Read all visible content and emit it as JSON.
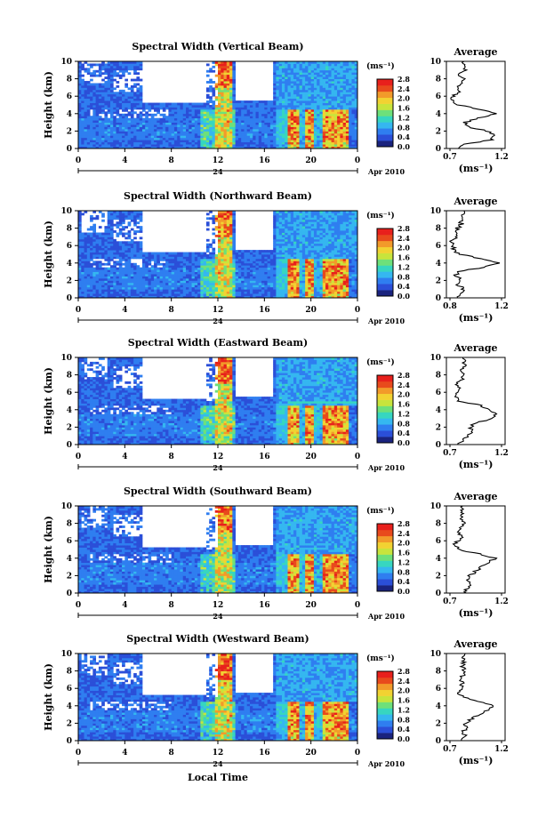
{
  "figure": {
    "x_label": "Local Time",
    "date_label": "Apr 2010",
    "date_day": "24",
    "colorbar_unit": "(ms⁻¹)",
    "colorbar_ticks": [
      "0.0",
      "0.4",
      "0.8",
      "1.2",
      "1.6",
      "2.0",
      "2.4",
      "2.8"
    ],
    "colorscale": [
      "#1a237e",
      "#2b4fd8",
      "#2f7ef0",
      "#35b7f0",
      "#37d6c0",
      "#6ee07a",
      "#c8e43c",
      "#f2d232",
      "#f29a2a",
      "#e84a1c",
      "#e8201c"
    ],
    "avg_title": "Average",
    "avg_unit": "(ms⁻¹)"
  },
  "chart_data": [
    {
      "type": "heatmap",
      "title": "Spectral Width (Vertical Beam)",
      "ylabel": "Height (km)",
      "xlabel": "Local Time",
      "x_ticks": [
        "0",
        "4",
        "8",
        "12",
        "16",
        "20",
        "0"
      ],
      "y_ticks": [
        "0",
        "2",
        "4",
        "6",
        "8",
        "10"
      ],
      "xlim": [
        0,
        24
      ],
      "ylim": [
        0,
        10
      ],
      "colorbar": {
        "label": "(ms⁻¹)",
        "range": [
          0.0,
          2.8
        ]
      },
      "profile": {
        "title": "Average",
        "xlabel": "(ms⁻¹)",
        "x_ticks": [
          "0.7",
          "1.2"
        ],
        "xlim": [
          0.7,
          1.2
        ],
        "points": [
          [
            0.0,
            0.78
          ],
          [
            0.5,
            0.86
          ],
          [
            1.0,
            1.08
          ],
          [
            1.5,
            1.1
          ],
          [
            2.0,
            1.05
          ],
          [
            2.5,
            0.88
          ],
          [
            3.0,
            0.86
          ],
          [
            3.5,
            0.98
          ],
          [
            4.0,
            1.12
          ],
          [
            4.5,
            0.98
          ],
          [
            5.0,
            0.8
          ],
          [
            5.5,
            0.75
          ],
          [
            6.0,
            0.76
          ],
          [
            6.5,
            0.8
          ],
          [
            7.0,
            0.78
          ],
          [
            7.5,
            0.83
          ],
          [
            8.0,
            0.85
          ],
          [
            8.5,
            0.8
          ],
          [
            9.0,
            0.86
          ],
          [
            9.5,
            0.84
          ],
          [
            10.0,
            0.85
          ]
        ]
      }
    },
    {
      "type": "heatmap",
      "title": "Spectral Width (Northward Beam)",
      "ylabel": "Height (km)",
      "xlabel": "Local Time",
      "x_ticks": [
        "0",
        "4",
        "8",
        "12",
        "16",
        "20",
        "0"
      ],
      "y_ticks": [
        "0",
        "2",
        "4",
        "6",
        "8",
        "10"
      ],
      "xlim": [
        0,
        24
      ],
      "ylim": [
        0,
        10
      ],
      "colorbar": {
        "label": "(ms⁻¹)",
        "range": [
          0.0,
          2.8
        ]
      },
      "profile": {
        "title": "Average",
        "xlabel": "(ms⁻¹)",
        "x_ticks": [
          "0.8",
          "1.2"
        ],
        "xlim": [
          0.8,
          1.2
        ],
        "points": [
          [
            0.0,
            0.86
          ],
          [
            0.5,
            0.9
          ],
          [
            1.0,
            0.92
          ],
          [
            1.5,
            0.88
          ],
          [
            2.0,
            0.9
          ],
          [
            2.5,
            0.86
          ],
          [
            3.0,
            0.88
          ],
          [
            3.5,
            1.05
          ],
          [
            4.0,
            1.16
          ],
          [
            4.5,
            1.02
          ],
          [
            5.0,
            0.9
          ],
          [
            5.5,
            0.85
          ],
          [
            6.0,
            0.84
          ],
          [
            6.5,
            0.83
          ],
          [
            7.0,
            0.86
          ],
          [
            7.5,
            0.87
          ],
          [
            8.0,
            0.88
          ],
          [
            8.5,
            0.9
          ],
          [
            9.0,
            0.91
          ],
          [
            9.5,
            0.9
          ],
          [
            10.0,
            0.92
          ]
        ]
      }
    },
    {
      "type": "heatmap",
      "title": "Spectral Width (Eastward Beam)",
      "ylabel": "Height (km)",
      "xlabel": "Local Time",
      "x_ticks": [
        "0",
        "4",
        "8",
        "12",
        "16",
        "20",
        "0"
      ],
      "y_ticks": [
        "0",
        "2",
        "4",
        "6",
        "8",
        "10"
      ],
      "xlim": [
        0,
        24
      ],
      "ylim": [
        0,
        10
      ],
      "colorbar": {
        "label": "(ms⁻¹)",
        "range": [
          0.0,
          2.8
        ]
      },
      "profile": {
        "title": "Average",
        "xlabel": "(ms⁻¹)",
        "x_ticks": [
          "0.7",
          "1.2"
        ],
        "xlim": [
          0.7,
          1.2
        ],
        "points": [
          [
            0.0,
            0.8
          ],
          [
            0.5,
            0.84
          ],
          [
            1.0,
            0.88
          ],
          [
            1.5,
            0.92
          ],
          [
            2.0,
            0.9
          ],
          [
            2.5,
            0.95
          ],
          [
            3.0,
            1.1
          ],
          [
            3.5,
            1.12
          ],
          [
            4.0,
            1.05
          ],
          [
            4.5,
            1.0
          ],
          [
            5.0,
            0.8
          ],
          [
            5.5,
            0.78
          ],
          [
            6.0,
            0.8
          ],
          [
            6.5,
            0.82
          ],
          [
            7.0,
            0.79
          ],
          [
            7.5,
            0.83
          ],
          [
            8.0,
            0.85
          ],
          [
            8.5,
            0.82
          ],
          [
            9.0,
            0.86
          ],
          [
            9.5,
            0.85
          ],
          [
            10.0,
            0.84
          ]
        ]
      }
    },
    {
      "type": "heatmap",
      "title": "Spectral Width (Southward Beam)",
      "ylabel": "Height (km)",
      "xlabel": "Local Time",
      "x_ticks": [
        "0",
        "4",
        "8",
        "12",
        "16",
        "20",
        "0"
      ],
      "y_ticks": [
        "0",
        "2",
        "4",
        "6",
        "8",
        "10"
      ],
      "xlim": [
        0,
        24
      ],
      "ylim": [
        0,
        10
      ],
      "colorbar": {
        "label": "(ms⁻¹)",
        "range": [
          0.0,
          2.8
        ]
      },
      "profile": {
        "title": "Average",
        "xlabel": "(ms⁻¹)",
        "x_ticks": [
          "0.7",
          "1.2"
        ],
        "xlim": [
          0.7,
          1.2
        ],
        "points": [
          [
            0.0,
            0.85
          ],
          [
            0.5,
            0.88
          ],
          [
            1.0,
            0.9
          ],
          [
            1.5,
            0.87
          ],
          [
            2.0,
            0.9
          ],
          [
            2.5,
            0.95
          ],
          [
            3.0,
            1.0
          ],
          [
            3.5,
            1.05
          ],
          [
            4.0,
            1.12
          ],
          [
            4.5,
            0.98
          ],
          [
            5.0,
            0.8
          ],
          [
            5.5,
            0.77
          ],
          [
            6.0,
            0.8
          ],
          [
            6.5,
            0.83
          ],
          [
            7.0,
            0.8
          ],
          [
            7.5,
            0.82
          ],
          [
            8.0,
            0.86
          ],
          [
            8.5,
            0.82
          ],
          [
            9.0,
            0.84
          ],
          [
            9.5,
            0.83
          ],
          [
            10.0,
            0.84
          ]
        ]
      }
    },
    {
      "type": "heatmap",
      "title": "Spectral Width (Westward Beam)",
      "ylabel": "Height (km)",
      "xlabel": "Local Time",
      "x_ticks": [
        "0",
        "4",
        "8",
        "12",
        "16",
        "20",
        "0"
      ],
      "y_ticks": [
        "0",
        "2",
        "4",
        "6",
        "8",
        "10"
      ],
      "xlim": [
        0,
        24
      ],
      "ylim": [
        0,
        10
      ],
      "colorbar": {
        "label": "(ms⁻¹)",
        "range": [
          0.0,
          2.8
        ]
      },
      "profile": {
        "title": "Average",
        "xlabel": "(ms⁻¹)",
        "x_ticks": [
          "0.7",
          "1.2"
        ],
        "xlim": [
          0.7,
          1.2
        ],
        "points": [
          [
            0.0,
            0.82
          ],
          [
            0.5,
            0.86
          ],
          [
            1.0,
            0.84
          ],
          [
            1.5,
            0.88
          ],
          [
            2.0,
            0.86
          ],
          [
            2.5,
            0.92
          ],
          [
            3.0,
            0.98
          ],
          [
            3.5,
            1.05
          ],
          [
            4.0,
            1.1
          ],
          [
            4.5,
            0.98
          ],
          [
            5.0,
            0.85
          ],
          [
            5.5,
            0.8
          ],
          [
            6.0,
            0.82
          ],
          [
            6.5,
            0.84
          ],
          [
            7.0,
            0.82
          ],
          [
            7.5,
            0.84
          ],
          [
            8.0,
            0.86
          ],
          [
            8.5,
            0.83
          ],
          [
            9.0,
            0.85
          ],
          [
            9.5,
            0.84
          ],
          [
            10.0,
            0.86
          ]
        ]
      }
    }
  ]
}
